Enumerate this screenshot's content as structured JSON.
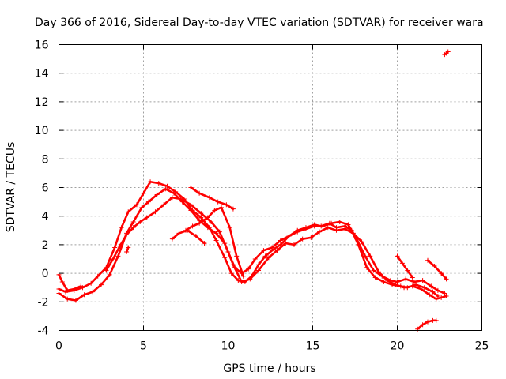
{
  "chart_data": {
    "type": "scatter",
    "title": "Day 366 of 2016, Sidereal Day-to-day VTEC variation (SDTVAR) for receiver wara",
    "xlabel": "GPS time / hours",
    "ylabel": "SDTVAR / TECUs",
    "xlim": [
      0,
      25
    ],
    "ylim": [
      -4,
      16
    ],
    "xticks": [
      0,
      5,
      10,
      15,
      20,
      25
    ],
    "yticks": [
      -4,
      -2,
      0,
      2,
      4,
      6,
      8,
      10,
      12,
      14,
      16
    ],
    "grid": true,
    "marker": "plus",
    "color": "#ff0000",
    "series": [
      {
        "name": "trace-1",
        "x": [
          0,
          0.4,
          0.9,
          1.4,
          1.9,
          2.3,
          2.8,
          3.3,
          3.7,
          4.1,
          4.6,
          5.0,
          5.4,
          5.9,
          6.4,
          6.9,
          7.4,
          7.9,
          8.4,
          8.9,
          9.3,
          9.8,
          10.2,
          10.6,
          11.0,
          11.4,
          11.8,
          12.2,
          12.7,
          13.1,
          13.6,
          14.1,
          14.6,
          15.1,
          15.5,
          16.0,
          16.4,
          16.9,
          17.3,
          17.7,
          18.2,
          18.7,
          19.2,
          19.7,
          20.2,
          20.6,
          21.1,
          21.6,
          22.1,
          22.4
        ],
        "y": [
          -1.1,
          -1.3,
          -1.2,
          -1.0,
          -0.7,
          -0.2,
          0.4,
          1.8,
          3.2,
          4.3,
          4.8,
          5.6,
          6.4,
          6.3,
          6.1,
          5.7,
          5.2,
          4.4,
          3.9,
          3.2,
          2.3,
          1.1,
          0.0,
          -0.5,
          -0.6,
          -0.2,
          0.6,
          1.2,
          1.7,
          2.0,
          2.6,
          3.0,
          3.2,
          3.4,
          3.3,
          3.5,
          3.2,
          3.3,
          3.0,
          2.0,
          0.4,
          -0.3,
          -0.6,
          -0.8,
          -0.9,
          -1.0,
          -0.8,
          -1.0,
          -1.3,
          -1.6
        ]
      },
      {
        "name": "trace-2",
        "x": [
          0,
          0.5,
          1.0,
          1.5,
          2.0,
          2.5,
          3.0,
          3.5,
          4.0,
          4.4,
          4.9,
          5.3,
          5.8,
          6.3,
          6.8,
          7.3,
          7.8,
          8.3,
          8.8,
          9.3,
          9.8,
          10.3,
          10.8,
          11.3,
          11.8,
          12.4,
          12.9,
          13.4,
          13.9,
          14.4,
          14.9,
          15.4,
          15.9,
          16.4,
          16.9,
          17.4,
          17.9,
          18.4,
          18.9,
          19.4,
          19.9,
          20.4,
          20.9,
          21.4,
          21.9,
          22.3,
          22.6,
          22.9
        ],
        "y": [
          -1.4,
          -1.8,
          -1.9,
          -1.5,
          -1.3,
          -0.8,
          -0.1,
          1.2,
          2.8,
          3.6,
          4.6,
          5.0,
          5.5,
          5.9,
          5.6,
          5.0,
          4.4,
          3.7,
          3.2,
          2.8,
          2.1,
          0.6,
          -0.6,
          -0.4,
          0.2,
          1.1,
          1.6,
          2.1,
          2.0,
          2.4,
          2.5,
          2.9,
          3.2,
          3.0,
          3.1,
          2.8,
          2.2,
          1.2,
          0.1,
          -0.5,
          -0.8,
          -1.0,
          -0.9,
          -1.1,
          -1.5,
          -1.8,
          -1.7,
          -1.6
        ]
      },
      {
        "name": "trace-3",
        "x": [
          2.8,
          3.2,
          3.6,
          4.0,
          4.4,
          4.8,
          5.2,
          5.7,
          6.2,
          6.7,
          7.2,
          7.8,
          8.4,
          9.0,
          9.5,
          10.0,
          10.4,
          10.8,
          11.2,
          11.6,
          12.1,
          12.6,
          13.1,
          13.6,
          14.1,
          14.6,
          15.1,
          15.6,
          16.1,
          16.6,
          17.1,
          17.6,
          18.1,
          18.6,
          19.1,
          19.6,
          20.0,
          20.5,
          21.0,
          21.5,
          22.0,
          22.4,
          22.8
        ],
        "y": [
          0.2,
          1.0,
          1.9,
          2.7,
          3.2,
          3.6,
          3.9,
          4.3,
          4.8,
          5.3,
          5.2,
          4.8,
          4.2,
          3.6,
          2.9,
          1.5,
          0.4,
          0.0,
          0.3,
          1.0,
          1.6,
          1.8,
          2.3,
          2.6,
          2.9,
          3.1,
          3.3,
          3.3,
          3.5,
          3.6,
          3.4,
          2.4,
          1.2,
          0.2,
          -0.2,
          -0.5,
          -0.6,
          -0.4,
          -0.6,
          -0.5,
          -0.9,
          -1.2,
          -1.4
        ]
      },
      {
        "name": "trace-4",
        "x": [
          7.5,
          7.9,
          8.3,
          8.8,
          9.2,
          9.6,
          10.1,
          10.5,
          10.9
        ],
        "y": [
          3.0,
          3.3,
          3.5,
          3.9,
          4.4,
          4.6,
          3.2,
          1.2,
          -0.2
        ]
      },
      {
        "name": "trace-5",
        "x": [
          7.8,
          8.3,
          8.9,
          9.4,
          9.9,
          10.3
        ],
        "y": [
          6.0,
          5.6,
          5.3,
          5.0,
          4.8,
          4.5
        ]
      },
      {
        "name": "trace-6",
        "x": [
          0.0,
          0.2,
          0.5,
          0.9,
          1.3
        ],
        "y": [
          -0.1,
          -0.6,
          -1.2,
          -1.1,
          -0.9
        ]
      },
      {
        "name": "trace-7",
        "x": [
          6.7,
          7.1,
          7.6,
          8.1,
          8.6
        ],
        "y": [
          2.4,
          2.8,
          3.0,
          2.6,
          2.1
        ]
      },
      {
        "name": "trace-8",
        "x": [
          20.0,
          20.3,
          20.6,
          20.9
        ],
        "y": [
          1.2,
          0.7,
          0.2,
          -0.3
        ]
      },
      {
        "name": "trace-9",
        "x": [
          21.8,
          22.2,
          22.6,
          22.9
        ],
        "y": [
          0.9,
          0.5,
          0.0,
          -0.4
        ]
      },
      {
        "name": "trace-10",
        "x": [
          4.0,
          4.1
        ],
        "y": [
          1.5,
          1.8
        ]
      },
      {
        "name": "trace-11",
        "x": [
          21.2,
          21.5,
          21.8,
          22.1,
          22.3
        ],
        "y": [
          -3.9,
          -3.6,
          -3.4,
          -3.3,
          -3.3
        ]
      },
      {
        "name": "trace-12",
        "x": [
          22.8,
          22.9,
          23.0
        ],
        "y": [
          15.3,
          15.4,
          15.5
        ]
      }
    ]
  }
}
